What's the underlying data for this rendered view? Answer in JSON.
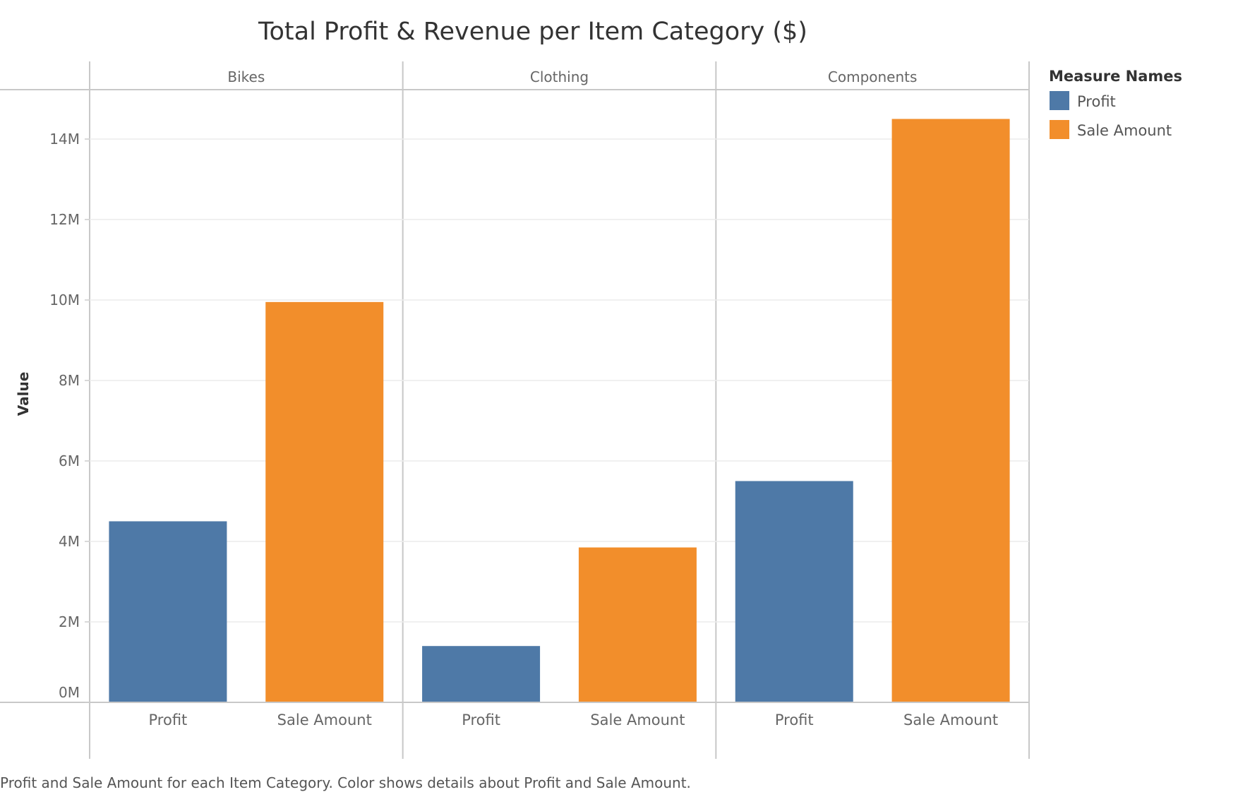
{
  "chart_data": {
    "type": "bar",
    "title": "Total Profit & Revenue per Item Category ($)",
    "ylabel": "Value",
    "ylim": [
      0,
      15000000
    ],
    "yticks": [
      0,
      2000000,
      4000000,
      6000000,
      8000000,
      10000000,
      12000000,
      14000000
    ],
    "ytick_labels": [
      "0M",
      "2M",
      "4M",
      "6M",
      "8M",
      "10M",
      "12M",
      "14M"
    ],
    "categories": [
      "Bikes",
      "Clothing",
      "Components"
    ],
    "measures": [
      "Profit",
      "Sale Amount"
    ],
    "series": [
      {
        "name": "Profit",
        "color": "#4e79a7",
        "values": [
          4500000,
          1400000,
          5500000
        ]
      },
      {
        "name": "Sale Amount",
        "color": "#f28e2b",
        "values": [
          9950000,
          3850000,
          14500000
        ]
      }
    ],
    "legend": {
      "title": "Measure Names",
      "position": "right"
    },
    "grid": true
  },
  "caption": "Profit and Sale Amount for each Item Category.  Color shows details about Profit and Sale Amount."
}
